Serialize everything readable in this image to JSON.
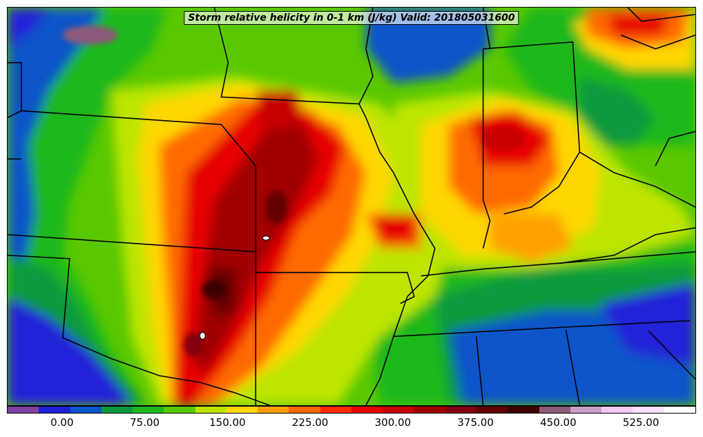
{
  "title": "Storm relative helicity in 0-1 km (J/kg) Valid: 201805031600",
  "colorbar": {
    "colors": [
      "#7f3f9f",
      "#2020d8",
      "#0a55c8",
      "#0c9a3c",
      "#1fb81f",
      "#5ac800",
      "#bde500",
      "#ffd700",
      "#ffa000",
      "#ff6a00",
      "#ff2a00",
      "#e60000",
      "#c80000",
      "#a00000",
      "#820010",
      "#640000",
      "#3c0000",
      "#8c5a7a",
      "#c8a0c8",
      "#f0c8f0",
      "#ffe0ff",
      "#ffffff"
    ],
    "tick_labels": [
      "0.00",
      "75.00",
      "150.00",
      "225.00",
      "300.00",
      "375.00",
      "450.00",
      "525.00"
    ],
    "tick_values": [
      0,
      75,
      150,
      225,
      300,
      375,
      450,
      525
    ],
    "range": [
      -50,
      575
    ]
  }
}
